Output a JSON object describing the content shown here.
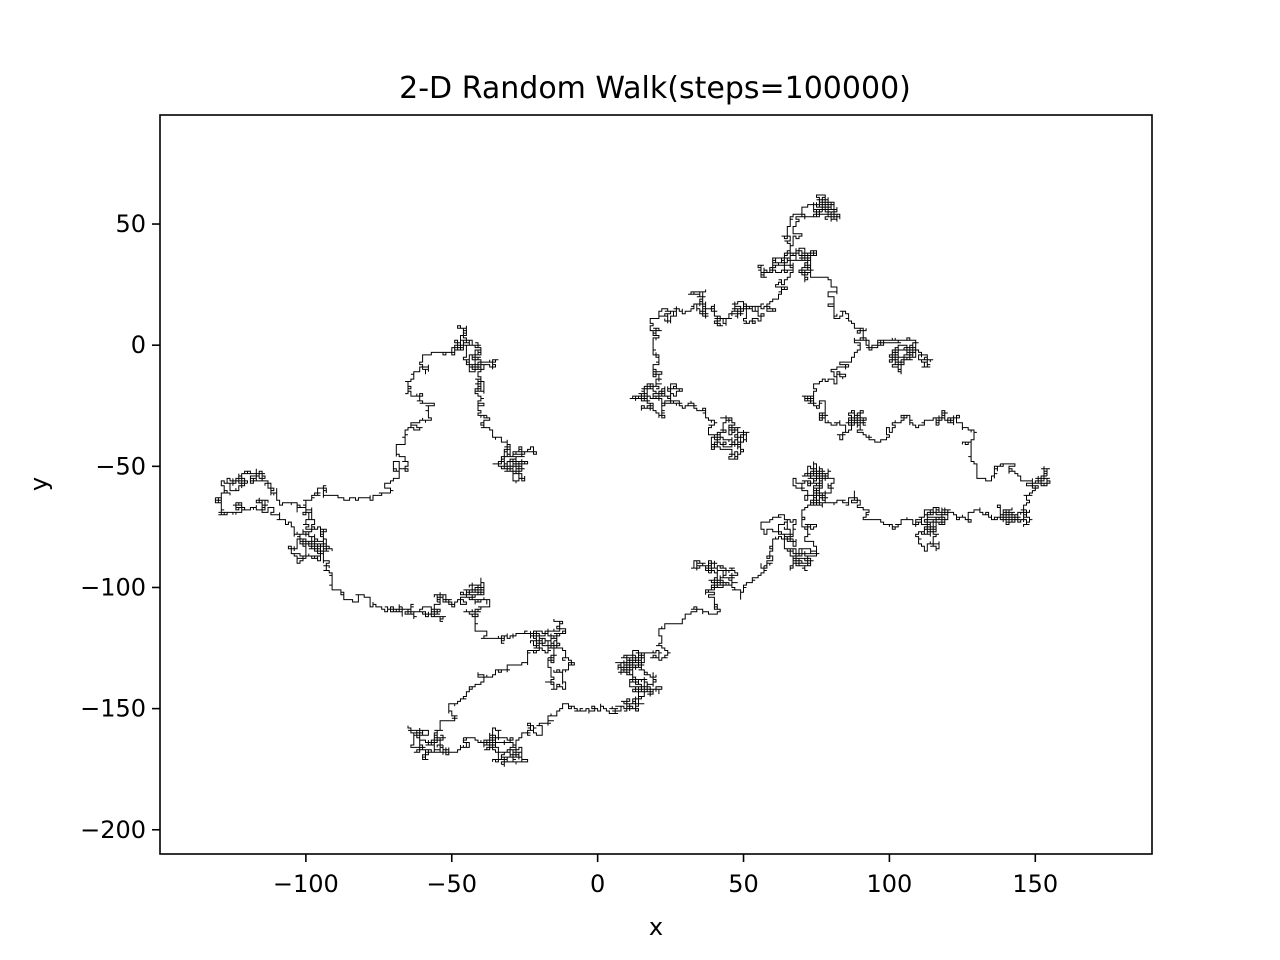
{
  "chart_data": {
    "type": "line",
    "title": "2-D Random Walk(steps=100000)",
    "xlabel": "x",
    "ylabel": "y",
    "xlim": [
      -150,
      190
    ],
    "ylim": [
      -210,
      95
    ],
    "xticks": [
      -100,
      -50,
      0,
      50,
      100,
      150
    ],
    "yticks": [
      50,
      0,
      -50,
      -100,
      -150,
      -200
    ],
    "xtick_labels": [
      "−100",
      "−50",
      "0",
      "50",
      "100",
      "150"
    ],
    "ytick_labels": [
      "50",
      "0",
      "−50",
      "−100",
      "−150",
      "−200"
    ],
    "grid": false,
    "series": [
      {
        "steps": 100000,
        "color": "#000000",
        "clusters": [
          {
            "cx": -30,
            "cy": -45,
            "spread": 12
          },
          {
            "cx": -40,
            "cy": -5,
            "spread": 7
          },
          {
            "cx": -100,
            "cy": -85,
            "spread": 16
          },
          {
            "cx": -120,
            "cy": -65,
            "spread": 8
          },
          {
            "cx": -50,
            "cy": -110,
            "spread": 13
          },
          {
            "cx": -15,
            "cy": -120,
            "spread": 10
          },
          {
            "cx": -55,
            "cy": -165,
            "spread": 11
          },
          {
            "cx": -30,
            "cy": -160,
            "spread": 8
          },
          {
            "cx": 15,
            "cy": -150,
            "spread": 12
          },
          {
            "cx": 10,
            "cy": -140,
            "spread": 9
          },
          {
            "cx": 40,
            "cy": -100,
            "spread": 11
          },
          {
            "cx": 70,
            "cy": -75,
            "spread": 15
          },
          {
            "cx": 75,
            "cy": -55,
            "spread": 9
          },
          {
            "cx": 115,
            "cy": -75,
            "spread": 12
          },
          {
            "cx": 150,
            "cy": -70,
            "spread": 13
          },
          {
            "cx": 85,
            "cy": -30,
            "spread": 10
          },
          {
            "cx": 105,
            "cy": 0,
            "spread": 8
          },
          {
            "cx": 70,
            "cy": 35,
            "spread": 13
          },
          {
            "cx": 80,
            "cy": 60,
            "spread": 8
          },
          {
            "cx": 45,
            "cy": 15,
            "spread": 10
          },
          {
            "cx": 20,
            "cy": -20,
            "spread": 9
          },
          {
            "cx": 40,
            "cy": -40,
            "spread": 8
          }
        ]
      }
    ]
  }
}
